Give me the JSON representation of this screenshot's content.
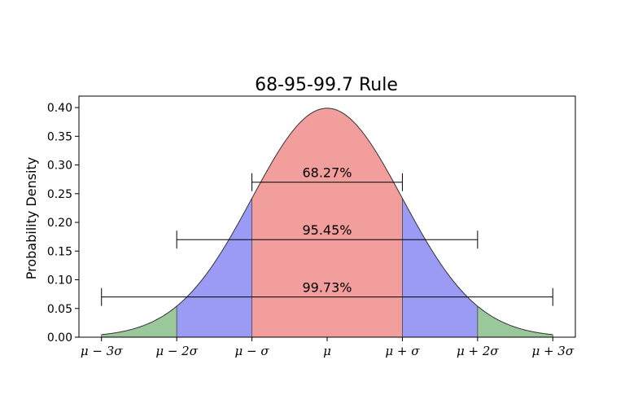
{
  "chart_data": {
    "type": "area",
    "title": "68-95-99.7 Rule",
    "xlabel": "",
    "ylabel": "Probability Density",
    "xlim": [
      -3.3,
      3.3
    ],
    "ylim": [
      0,
      0.42
    ],
    "yticks": [
      0.0,
      0.05,
      0.1,
      0.15,
      0.2,
      0.25,
      0.3,
      0.35,
      0.4
    ],
    "ytick_labels": [
      "0.00",
      "0.05",
      "0.10",
      "0.15",
      "0.20",
      "0.25",
      "0.30",
      "0.35",
      "0.40"
    ],
    "xticks": [
      -3,
      -2,
      -1,
      0,
      1,
      2,
      3
    ],
    "xtick_labels": [
      "μ − 3σ",
      "μ − 2σ",
      "μ − σ",
      "μ",
      "μ + σ",
      "μ + 2σ",
      "μ + 3σ"
    ],
    "curve": {
      "distribution": "normal",
      "mean": 0,
      "sd": 1,
      "x_range": [
        -3,
        3
      ]
    },
    "regions": [
      {
        "from": -3,
        "to": -2,
        "color": "#9bc89b"
      },
      {
        "from": -2,
        "to": -1,
        "color": "#9b9bf5"
      },
      {
        "from": -1,
        "to": 1,
        "color": "#f19e9c"
      },
      {
        "from": 1,
        "to": 2,
        "color": "#9b9bf5"
      },
      {
        "from": 2,
        "to": 3,
        "color": "#9bc89b"
      }
    ],
    "intervals": [
      {
        "from": -1,
        "to": 1,
        "y": 0.27,
        "label": "68.27%"
      },
      {
        "from": -2,
        "to": 2,
        "y": 0.17,
        "label": "95.45%"
      },
      {
        "from": -3,
        "to": 3,
        "y": 0.07,
        "label": "99.73%"
      }
    ],
    "grid": false,
    "legend": "none"
  }
}
